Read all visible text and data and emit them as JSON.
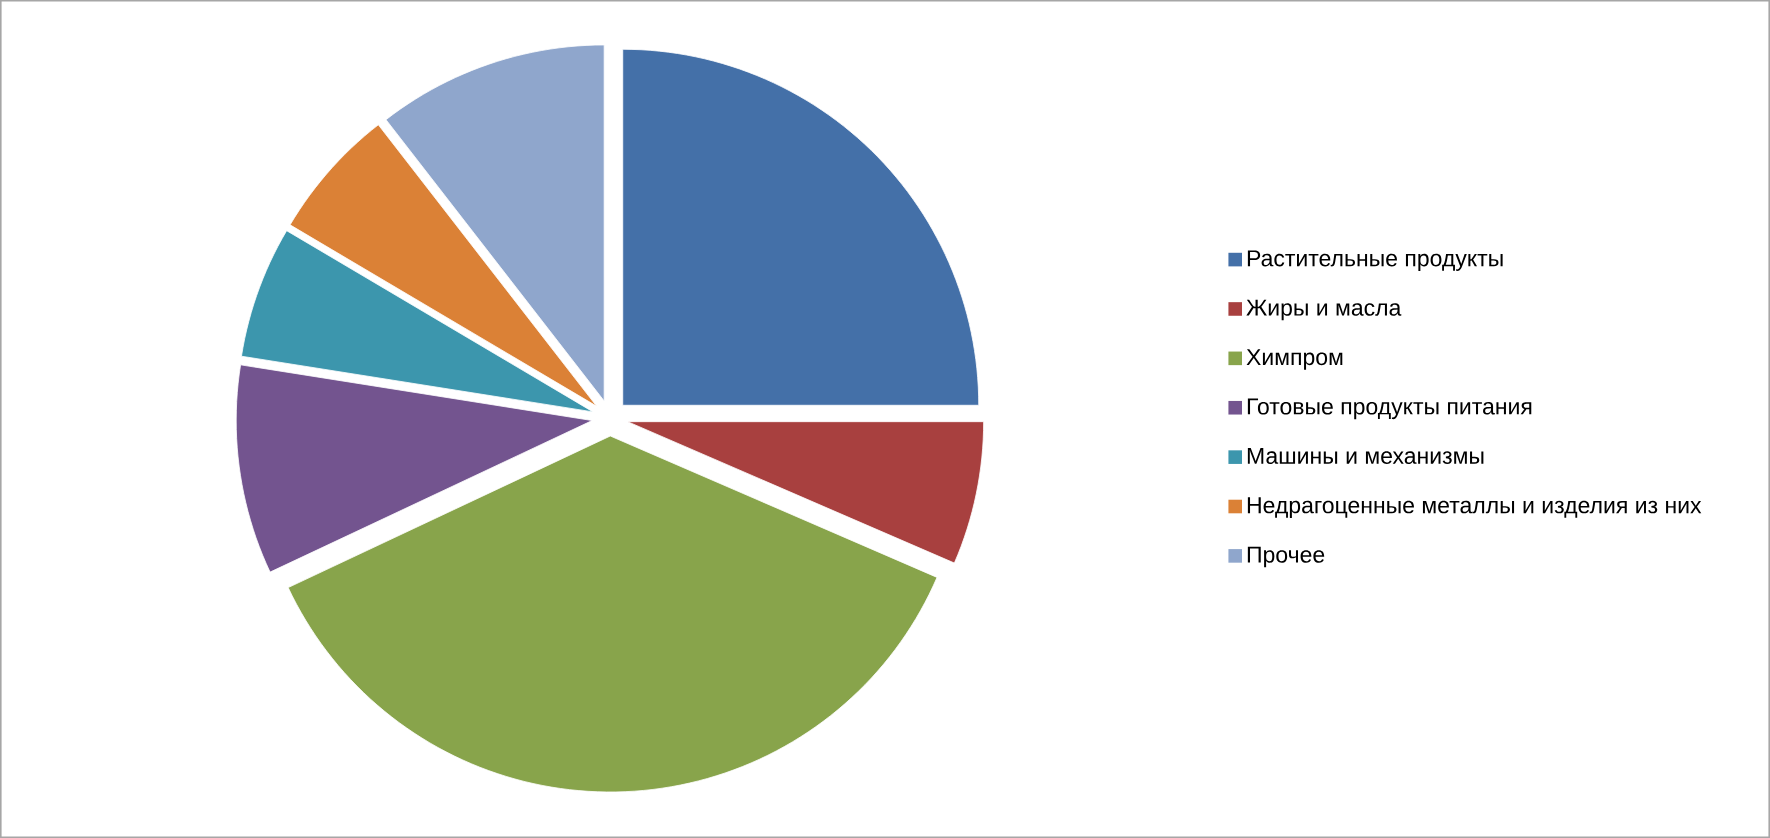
{
  "chart_data": {
    "type": "pie",
    "categories": [
      "Растительные продукты",
      "Жиры и масла",
      "Химпром",
      "Готовые продукты питания",
      "Машины и механизмы",
      "Недрагоценные металлы и изделия из них",
      "Прочее"
    ],
    "values": [
      25,
      6.5,
      36.5,
      9.5,
      6,
      6,
      10.5
    ],
    "colors": [
      "#4470a8",
      "#a8403f",
      "#88a44b",
      "#73548f",
      "#3c96ad",
      "#db8136",
      "#8fa6cc"
    ],
    "legend": "right"
  }
}
